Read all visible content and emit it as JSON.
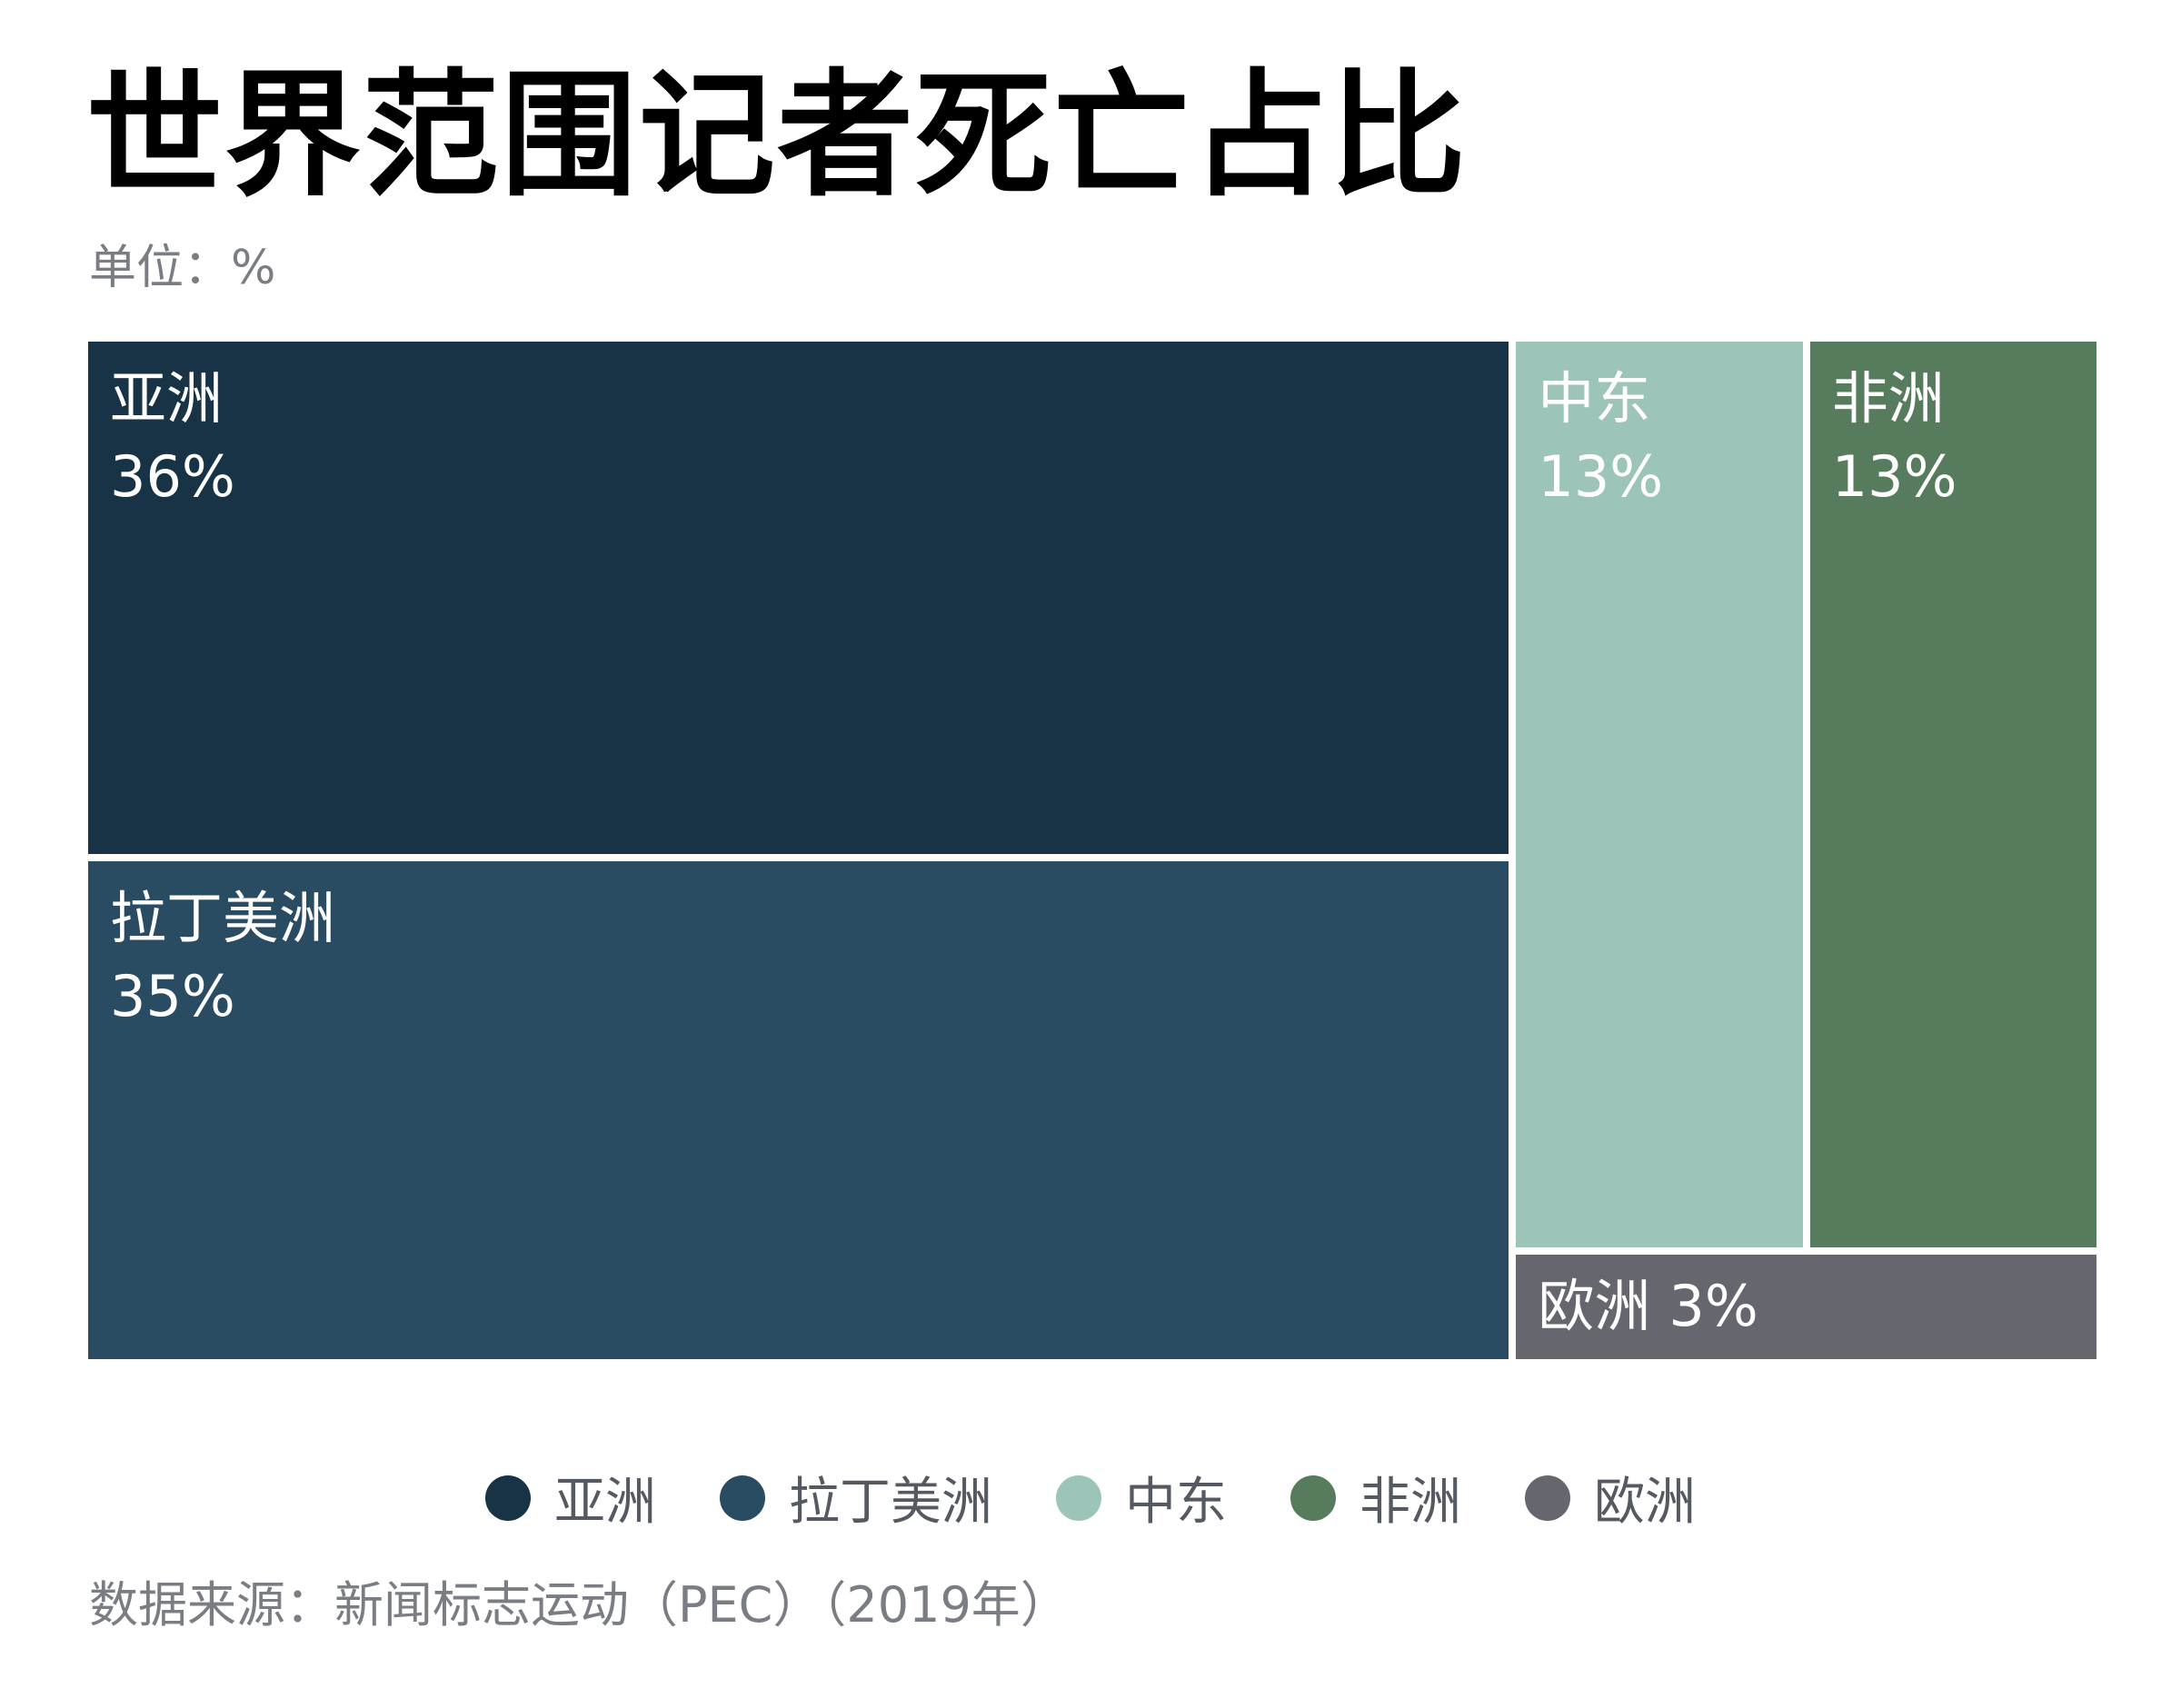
{
  "header": {
    "title": "世界范围记者死亡占比",
    "unit": "单位：%"
  },
  "chart_data": {
    "type": "treemap",
    "title": "世界范围记者死亡占比",
    "unit": "%",
    "items": [
      {
        "name": "亚洲",
        "value": 36,
        "label_value": "36%",
        "color": "#183346"
      },
      {
        "name": "拉丁美洲",
        "value": 35,
        "label_value": "35%",
        "color": "#294c63"
      },
      {
        "name": "中东",
        "value": 13,
        "label_value": "13%",
        "color": "#9cc4b9"
      },
      {
        "name": "非洲",
        "value": 13,
        "label_value": "13%",
        "color": "#567c5d"
      },
      {
        "name": "欧洲",
        "value": 3,
        "label_value": "3%",
        "color": "#66666f"
      }
    ],
    "legend_position": "bottom"
  },
  "legend": {
    "items": [
      {
        "label": "亚洲",
        "color": "#183346"
      },
      {
        "label": "拉丁美洲",
        "color": "#294c63"
      },
      {
        "label": "中东",
        "color": "#9cc4b9"
      },
      {
        "label": "非洲",
        "color": "#567c5d"
      },
      {
        "label": "欧洲",
        "color": "#66666f"
      }
    ]
  },
  "footer": {
    "source": "数据来源：新闻标志运动（PEC）（2019年）"
  }
}
